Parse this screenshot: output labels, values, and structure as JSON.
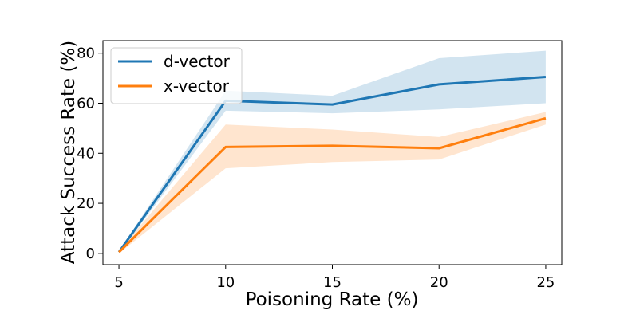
{
  "chart_data": {
    "type": "line",
    "title": "",
    "xlabel": "Poisoning Rate (%)",
    "ylabel": "Attack Success Rate (%)",
    "x": [
      5,
      10,
      15,
      20,
      25
    ],
    "xticks": [
      "5",
      "10",
      "15",
      "20",
      "25"
    ],
    "yticks": [
      "0",
      "20",
      "40",
      "60",
      "80"
    ],
    "xlim": [
      4.25,
      25.75
    ],
    "ylim": [
      -4.5,
      85
    ],
    "grid": false,
    "legend_position": "top-left",
    "series": [
      {
        "name": "d-vector",
        "color": "#1f77b4",
        "values": [
          0.5,
          61,
          59.5,
          67.5,
          70.5
        ],
        "band_lower": [
          0,
          57,
          56,
          57.5,
          60
        ],
        "band_upper": [
          1,
          65,
          63,
          78,
          81
        ]
      },
      {
        "name": "x-vector",
        "color": "#ff7f0e",
        "values": [
          0.5,
          42.5,
          43,
          42,
          54
        ],
        "band_lower": [
          0,
          34,
          36.5,
          37.5,
          51.5
        ],
        "band_upper": [
          1,
          51.5,
          49.5,
          46.5,
          56.5
        ]
      }
    ]
  }
}
